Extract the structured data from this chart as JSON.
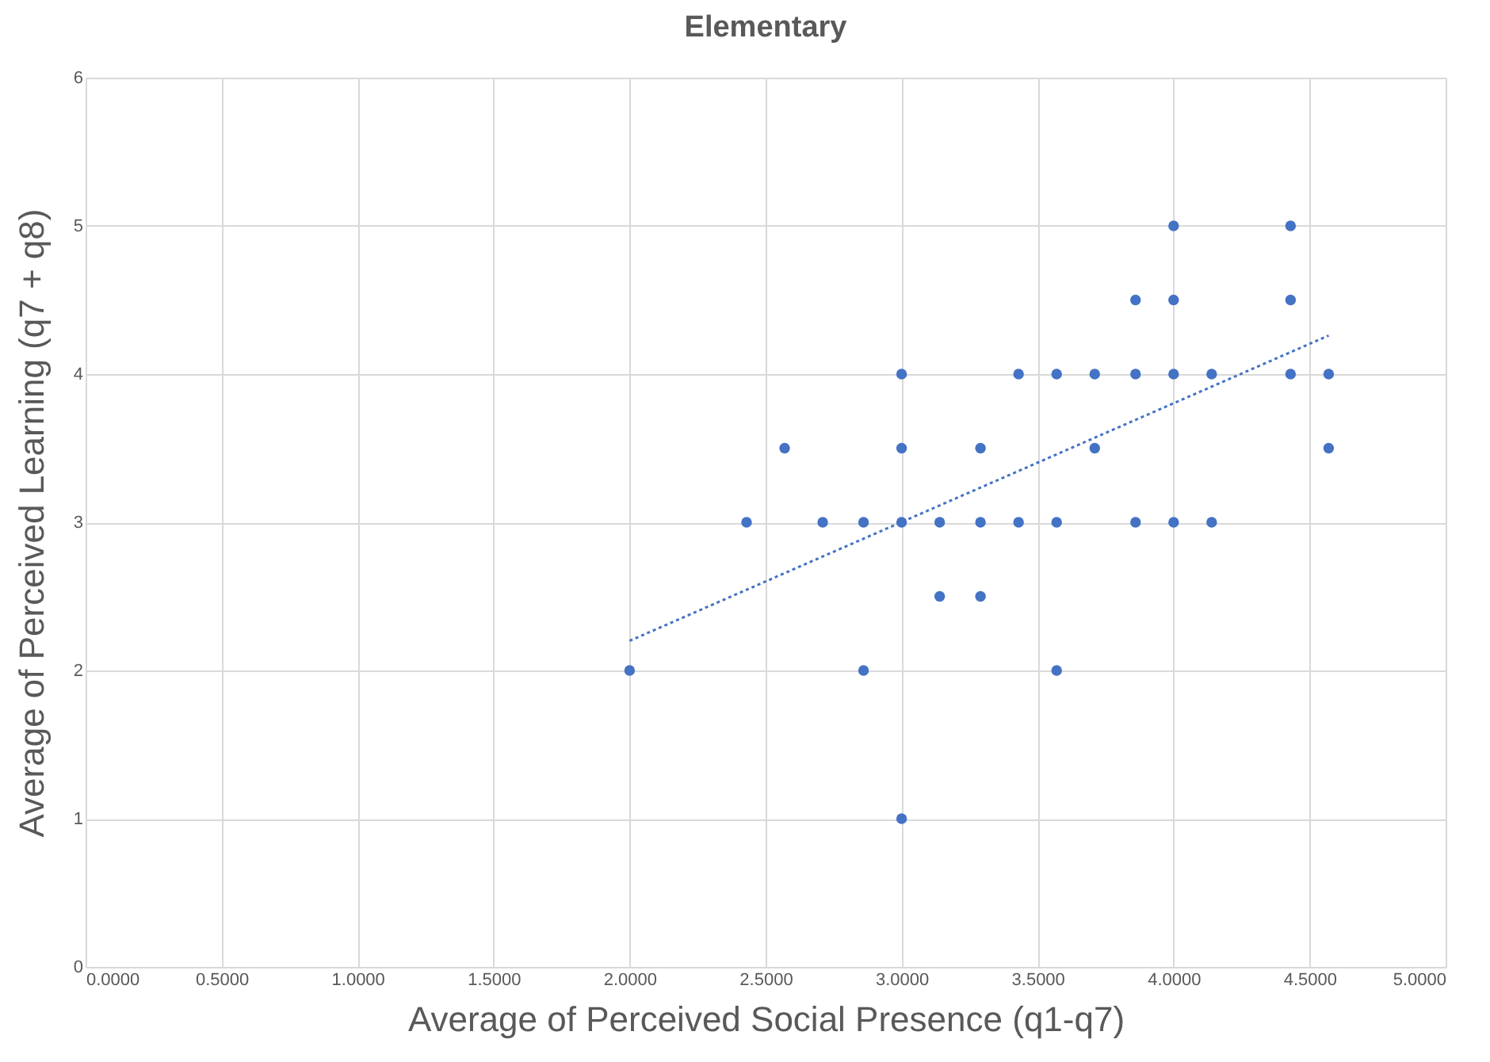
{
  "chart_data": {
    "type": "scatter",
    "title": "Elementary",
    "xlabel": "Average of Perceived Social Presence  (q1-q7)",
    "ylabel": "Average of  Perceived Learning (q7 + q8)",
    "xlim": [
      0,
      5
    ],
    "xticks": [
      {
        "value": 0,
        "label": "0.0000"
      },
      {
        "value": 0.5,
        "label": "0.5000"
      },
      {
        "value": 1,
        "label": "1.0000"
      },
      {
        "value": 1.5,
        "label": "1.5000"
      },
      {
        "value": 2,
        "label": "2.0000"
      },
      {
        "value": 2.5,
        "label": "2.5000"
      },
      {
        "value": 3,
        "label": "3.0000"
      },
      {
        "value": 3.5,
        "label": "3.5000"
      },
      {
        "value": 4,
        "label": "4.0000"
      },
      {
        "value": 4.5,
        "label": "4.5000"
      },
      {
        "value": 5,
        "label": "5.0000"
      }
    ],
    "ylim": [
      0,
      6
    ],
    "yticks": [
      0,
      1,
      2,
      3,
      4,
      5,
      6
    ],
    "grid": true,
    "series": [
      {
        "marker": "circle",
        "color": "#4472c4",
        "x": [
          2.0,
          2.43,
          2.57,
          2.71,
          2.86,
          2.86,
          3.0,
          3.0,
          3.0,
          3.0,
          3.14,
          3.14,
          3.29,
          3.29,
          3.29,
          3.43,
          3.43,
          3.57,
          3.57,
          3.57,
          3.71,
          3.71,
          3.86,
          3.86,
          3.86,
          4.0,
          4.0,
          4.0,
          4.0,
          4.14,
          4.14,
          4.43,
          4.43,
          4.43,
          4.57,
          4.57
        ],
        "values": [
          2,
          3,
          3.5,
          3,
          3,
          2,
          4,
          3.5,
          3,
          1,
          3,
          2.5,
          3.5,
          3,
          2.5,
          4,
          3,
          4,
          3,
          2,
          4,
          3.5,
          4.5,
          4,
          3,
          5,
          4.5,
          4,
          3,
          4,
          3,
          5,
          4.5,
          4,
          4,
          3.5
        ]
      },
      {
        "type": "line",
        "marker": "none",
        "color": "#4472c4",
        "line_style": "dotted",
        "x": [
          2.0,
          4.57
        ],
        "values": [
          2.2,
          4.26
        ]
      }
    ]
  }
}
